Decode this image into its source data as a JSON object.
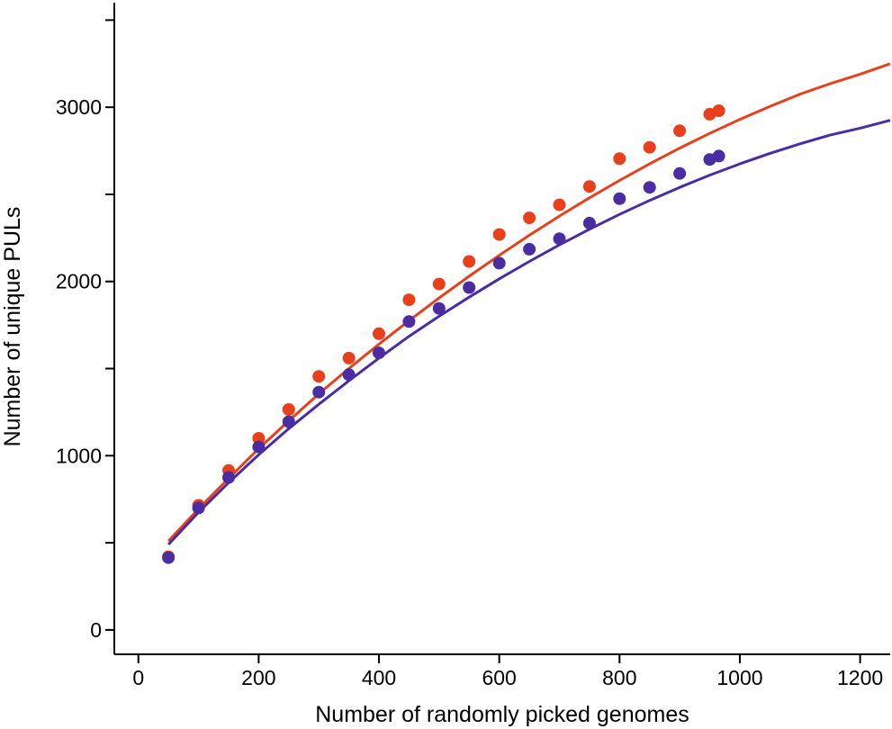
{
  "chart_data": {
    "type": "scatter",
    "title": "",
    "xlabel": "Number of randomly picked genomes",
    "ylabel": "Number of unique PULs",
    "xlim": [
      -40,
      1250
    ],
    "ylim": [
      -140,
      3600
    ],
    "xticks": [
      0,
      200,
      400,
      600,
      800,
      1000,
      1200
    ],
    "xtick_labels": [
      "0",
      "200",
      "400",
      "600",
      "800",
      "1000",
      "1200"
    ],
    "yticks": [
      0,
      1000,
      2000,
      3000
    ],
    "ytick_labels": [
      "0",
      "1000",
      "2000",
      "3000"
    ],
    "y_minor_ticks": [
      500,
      1500,
      2500,
      3500
    ],
    "grid": false,
    "series": [
      {
        "name": "red",
        "color": "#e8401c",
        "x": [
          50,
          100,
          150,
          200,
          250,
          300,
          350,
          400,
          450,
          500,
          550,
          600,
          650,
          700,
          750,
          800,
          850,
          900,
          950,
          965
        ],
        "y": [
          420,
          715,
          915,
          1100,
          1265,
          1455,
          1560,
          1700,
          1895,
          1985,
          2115,
          2270,
          2365,
          2440,
          2545,
          2705,
          2770,
          2865,
          2960,
          2980
        ],
        "fit": {
          "x": [
            50,
            100,
            150,
            200,
            250,
            300,
            350,
            400,
            450,
            500,
            550,
            600,
            650,
            700,
            750,
            800,
            850,
            900,
            950,
            1000,
            1050,
            1100,
            1150,
            1200,
            1250
          ],
          "y": [
            510,
            695,
            870,
            1040,
            1200,
            1355,
            1500,
            1640,
            1775,
            1905,
            2030,
            2150,
            2265,
            2375,
            2480,
            2580,
            2675,
            2765,
            2850,
            2930,
            3005,
            3075,
            3135,
            3190,
            3250
          ]
        }
      },
      {
        "name": "purple",
        "color": "#4a2ca3",
        "x": [
          50,
          100,
          150,
          200,
          250,
          300,
          350,
          400,
          450,
          500,
          550,
          600,
          650,
          700,
          750,
          800,
          850,
          900,
          950,
          965
        ],
        "y": [
          415,
          700,
          875,
          1050,
          1195,
          1365,
          1465,
          1590,
          1770,
          1845,
          1965,
          2105,
          2185,
          2245,
          2335,
          2475,
          2540,
          2620,
          2700,
          2720
        ],
        "fit": {
          "x": [
            50,
            100,
            150,
            200,
            250,
            300,
            350,
            400,
            450,
            500,
            550,
            600,
            650,
            700,
            750,
            800,
            850,
            900,
            950,
            1000,
            1050,
            1100,
            1150,
            1200,
            1250
          ],
          "y": [
            490,
            675,
            845,
            1005,
            1155,
            1295,
            1430,
            1560,
            1685,
            1800,
            1910,
            2015,
            2115,
            2210,
            2300,
            2385,
            2465,
            2540,
            2610,
            2675,
            2735,
            2790,
            2840,
            2880,
            2925
          ]
        }
      }
    ]
  }
}
